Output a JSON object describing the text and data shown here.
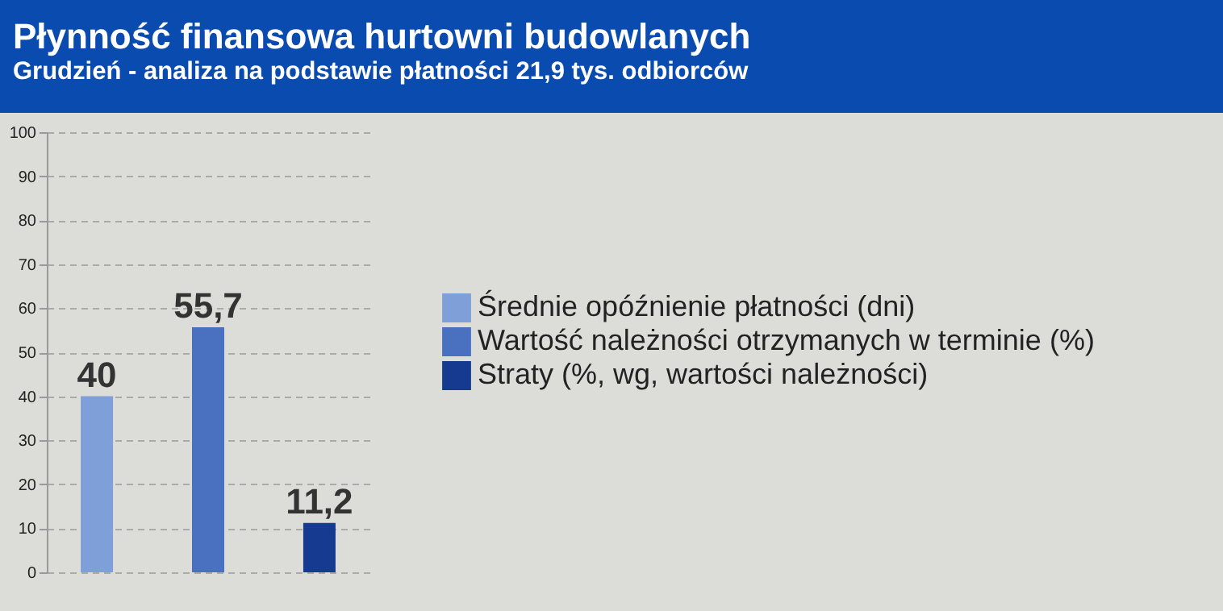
{
  "chart_data": {
    "type": "bar",
    "title": "Płynność finansowa hurtowni budowlanych",
    "subtitle": "Grudzień - analiza na podstawie płatności 21,9 tys. odbiorców",
    "categories": [
      null,
      null,
      null
    ],
    "series": [
      {
        "name": "Średnie opóźnienie płatności (dni)",
        "color": "#7f9fd8",
        "values": [
          40,
          null,
          null
        ],
        "value_labels": [
          "40",
          null,
          null
        ]
      },
      {
        "name": "Wartość należności otrzymanych w terminie (%)",
        "color": "#4a70c0",
        "values": [
          null,
          55.7,
          null
        ],
        "value_labels": [
          null,
          "55,7",
          null
        ]
      },
      {
        "name": "Straty (%, wg, wartości należności)",
        "color": "#163a8f",
        "values": [
          null,
          null,
          11.2
        ],
        "value_labels": [
          null,
          null,
          "11,2"
        ]
      }
    ],
    "ylim": [
      0,
      100
    ],
    "yticks": [
      0,
      10,
      20,
      30,
      40,
      50,
      60,
      70,
      80,
      90,
      100
    ],
    "grid": "y",
    "legend": "right"
  }
}
